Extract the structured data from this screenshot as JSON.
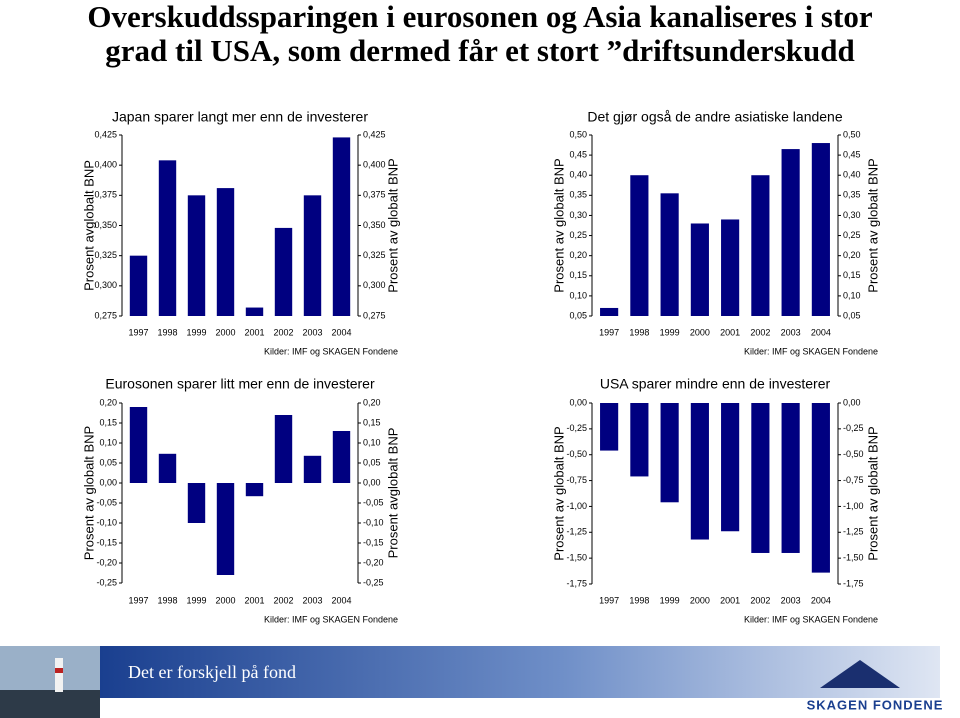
{
  "title_lines": [
    "Overskuddssparingen i eurosonen og Asia kanaliseres i stor",
    "grad til USA, som dermed får et stort ”driftsunderskudd"
  ],
  "chart_data": [
    {
      "type": "bar",
      "title": "Japan sparer langt mer enn de investerer",
      "ylabel": "Prosent avglobalt BNP",
      "y2label": "Prosent av globalt BNP",
      "source": "Kilder: IMF og SKAGEN Fondene",
      "color": "#000080",
      "categories": [
        "1997",
        "1998",
        "1999",
        "2000",
        "2001",
        "2002",
        "2003",
        "2004"
      ],
      "values": [
        0.325,
        0.404,
        0.375,
        0.381,
        0.282,
        0.348,
        0.375,
        0.423
      ],
      "ylim": [
        0.275,
        0.425
      ],
      "yticks": [
        {
          "value": 0.425,
          "label": "0,425"
        },
        {
          "value": 0.4,
          "label": "0,400"
        },
        {
          "value": 0.375,
          "label": "0,375"
        },
        {
          "value": 0.35,
          "label": "0,350"
        },
        {
          "value": 0.325,
          "label": "0,325"
        },
        {
          "value": 0.3,
          "label": "0,300"
        },
        {
          "value": 0.275,
          "label": "0,275"
        }
      ]
    },
    {
      "type": "bar",
      "title": "Det gjør også de andre asiatiske landene",
      "ylabel": "Prosent av globalt BNP",
      "y2label": "Prosent av globalt BNP",
      "source": "Kilder: IMF og SKAGEN Fondene",
      "color": "#000080",
      "categories": [
        "1997",
        "1998",
        "1999",
        "2000",
        "2001",
        "2002",
        "2003",
        "2004"
      ],
      "values": [
        0.07,
        0.4,
        0.355,
        0.28,
        0.29,
        0.4,
        0.465,
        0.48
      ],
      "ylim": [
        0.05,
        0.5
      ],
      "yticks": [
        {
          "value": 0.5,
          "label": "0,50"
        },
        {
          "value": 0.45,
          "label": "0,45"
        },
        {
          "value": 0.4,
          "label": "0,40"
        },
        {
          "value": 0.35,
          "label": "0,35"
        },
        {
          "value": 0.3,
          "label": "0,30"
        },
        {
          "value": 0.25,
          "label": "0,25"
        },
        {
          "value": 0.2,
          "label": "0,20"
        },
        {
          "value": 0.15,
          "label": "0,15"
        },
        {
          "value": 0.1,
          "label": "0,10"
        },
        {
          "value": 0.05,
          "label": "0,05"
        }
      ]
    },
    {
      "type": "bar",
      "title": "Eurosonen sparer litt mer enn de investerer",
      "ylabel": "Prosent av globalt BNP",
      "y2label": "Prosent avglobalt BNP",
      "source": "Kilder: IMF og SKAGEN Fondene",
      "color": "#000080",
      "categories": [
        "1997",
        "1998",
        "1999",
        "2000",
        "2001",
        "2002",
        "2003",
        "2004"
      ],
      "values": [
        0.19,
        0.073,
        -0.1,
        -0.23,
        -0.033,
        0.17,
        0.068,
        0.13
      ],
      "ylim": [
        -0.25,
        0.2
      ],
      "yticks": [
        {
          "value": 0.2,
          "label": "0,20"
        },
        {
          "value": 0.15,
          "label": "0,15"
        },
        {
          "value": 0.1,
          "label": "0,10"
        },
        {
          "value": 0.05,
          "label": "0,05"
        },
        {
          "value": 0,
          "label": "0,00"
        },
        {
          "value": -0.05,
          "label": "-0,05"
        },
        {
          "value": -0.1,
          "label": "-0,10"
        },
        {
          "value": -0.15,
          "label": "-0,15"
        },
        {
          "value": -0.2,
          "label": "-0,20"
        },
        {
          "value": -0.25,
          "label": "-0,25"
        }
      ]
    },
    {
      "type": "bar",
      "title": "USA sparer mindre enn de investerer",
      "ylabel": "Prosent av globalt BNP",
      "y2label": "Prosent av globalt BNP",
      "source": "Kilder: IMF og SKAGEN Fondene",
      "color": "#000080",
      "categories": [
        "1997",
        "1998",
        "1999",
        "2000",
        "2001",
        "2002",
        "2003",
        "2004"
      ],
      "values": [
        -0.46,
        -0.71,
        -0.96,
        -1.32,
        -1.24,
        -1.45,
        -1.45,
        -1.64
      ],
      "ylim": [
        -1.75,
        0
      ],
      "yticks": [
        {
          "value": 0,
          "label": "0,00"
        },
        {
          "value": -0.25,
          "label": "-0,25"
        },
        {
          "value": -0.5,
          "label": "-0,50"
        },
        {
          "value": -0.75,
          "label": "-0,75"
        },
        {
          "value": -1,
          "label": "-1,00"
        },
        {
          "value": -1.25,
          "label": "-1,25"
        },
        {
          "value": -1.5,
          "label": "-1,50"
        },
        {
          "value": -1.75,
          "label": "-1,75"
        }
      ]
    }
  ],
  "footer": {
    "tagline": "Det er forskjell på fond",
    "logo": "SKAGEN FONDENE"
  }
}
